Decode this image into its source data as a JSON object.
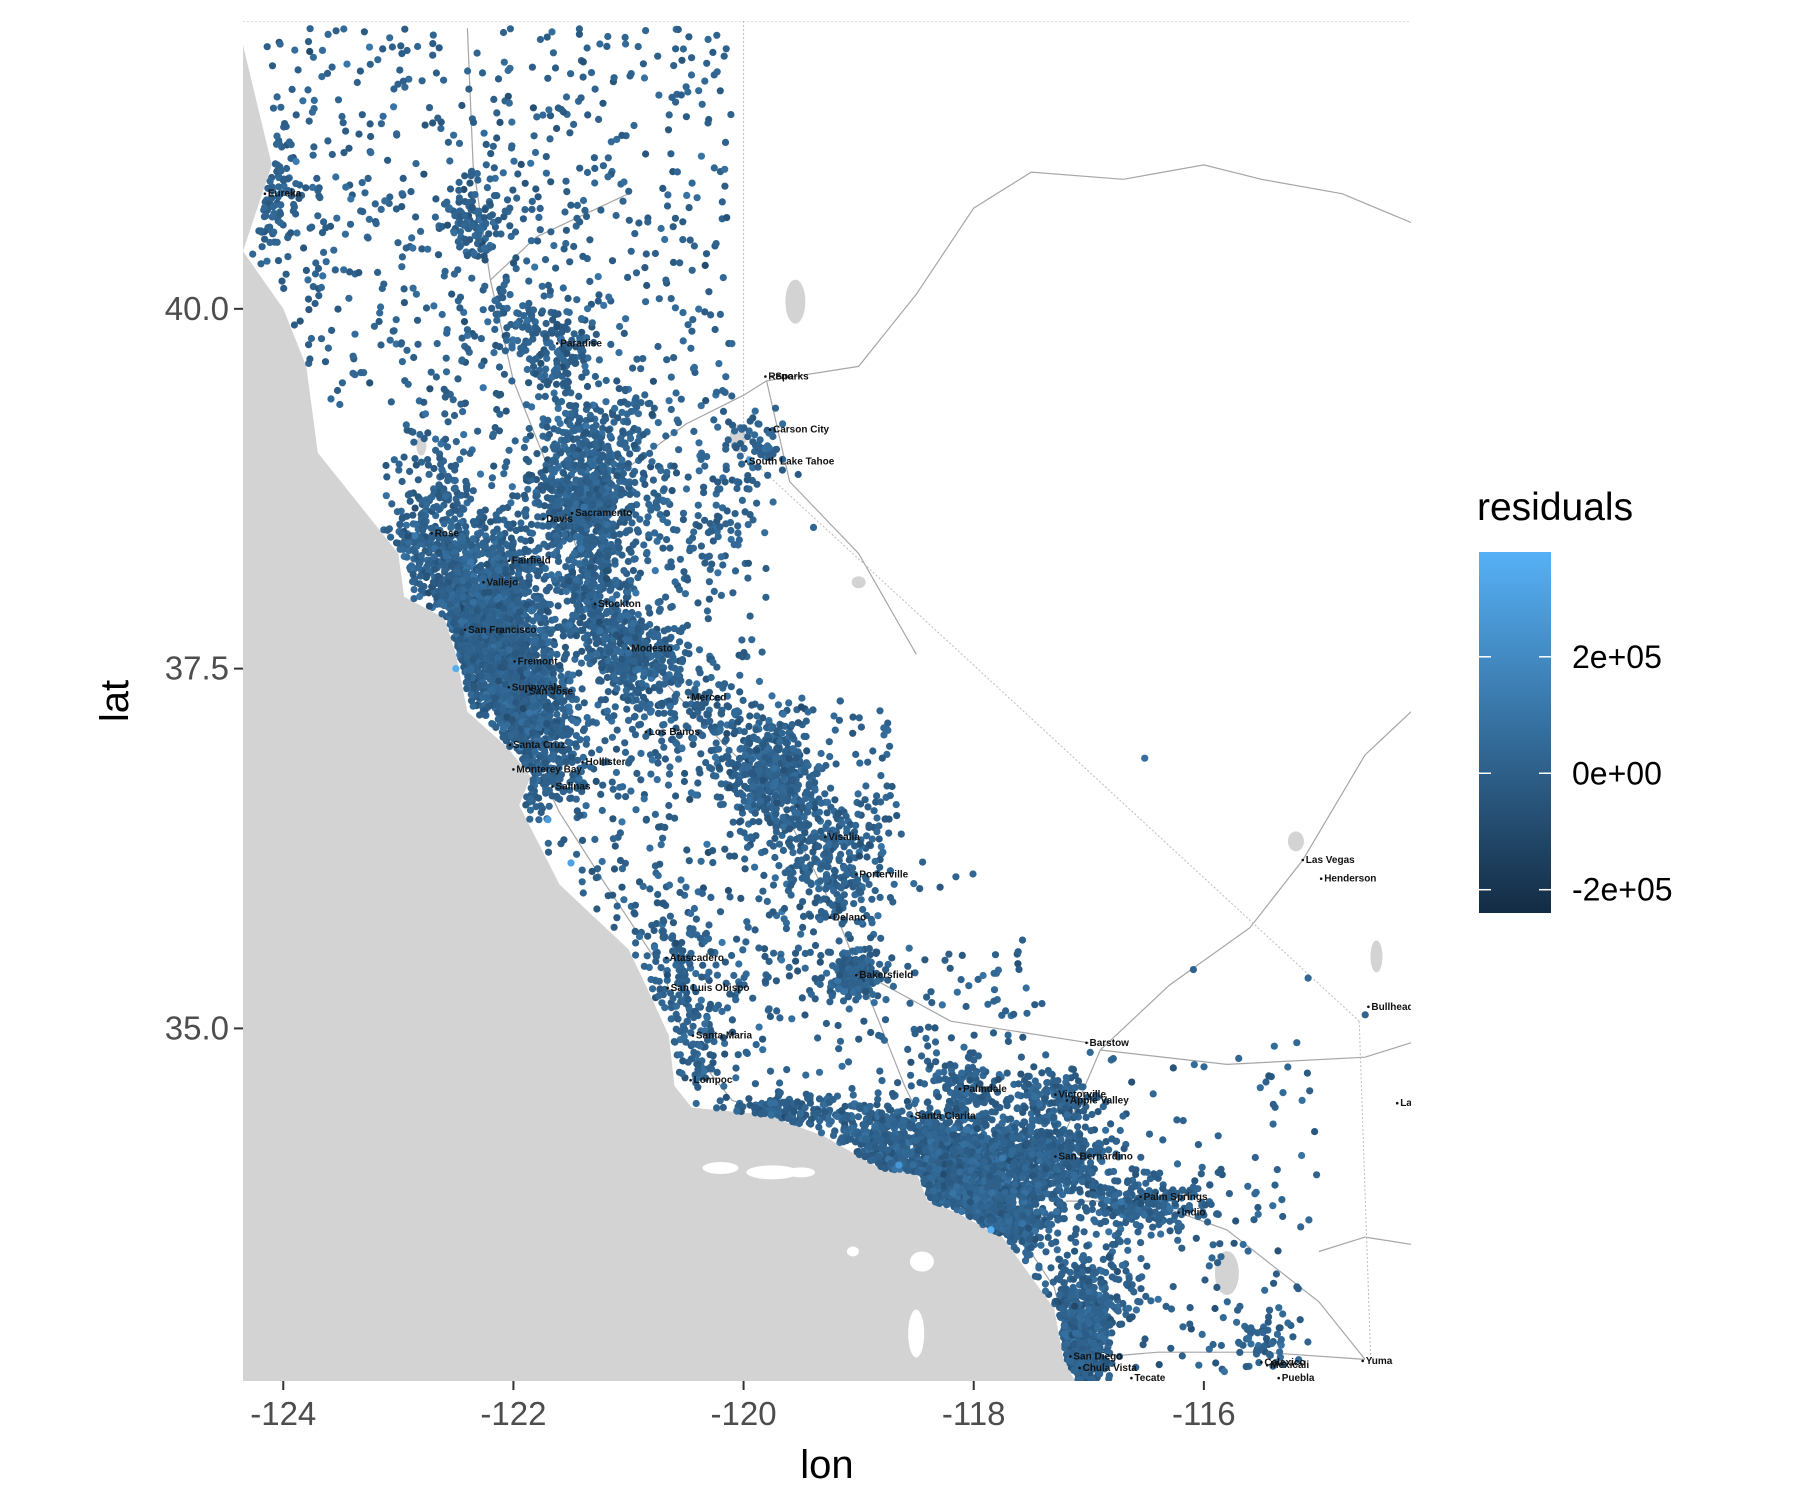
{
  "chart_data": {
    "type": "scatter",
    "title": "",
    "xlabel": "lon",
    "ylabel": "lat",
    "xlim": [
      -124.35,
      -114.2
    ],
    "ylim": [
      32.55,
      42.0
    ],
    "x_ticks": [
      -124,
      -122,
      -120,
      -118,
      -116
    ],
    "x_tick_labels": [
      "-124",
      "-122",
      "-120",
      "-118",
      "-116"
    ],
    "y_ticks": [
      35.0,
      37.5,
      40.0
    ],
    "y_tick_labels": [
      "35.0",
      "37.5",
      "40.0"
    ],
    "color_variable": "residuals",
    "legend": {
      "title": "residuals",
      "position": "right",
      "range": [
        -240000.0,
        380000.0
      ],
      "breaks": [
        -200000.0,
        0,
        200000.0
      ],
      "break_labels": [
        "-2e+05",
        "0e+00",
        "2e+05"
      ],
      "low_color": "#132B43",
      "high_color": "#56B1F7"
    },
    "basemap": {
      "ocean_color": "#d3d3d3",
      "land_color": "#ffffff",
      "cities": [
        {
          "name": "Reno",
          "lon": -119.81,
          "lat": 39.53
        },
        {
          "name": "Sparks",
          "lon": -119.75,
          "lat": 39.53
        },
        {
          "name": "Carson City",
          "lon": -119.77,
          "lat": 39.16
        },
        {
          "name": "South Lake Tahoe",
          "lon": -119.98,
          "lat": 38.94
        },
        {
          "name": "Paradise",
          "lon": -121.62,
          "lat": 39.76
        },
        {
          "name": "Rose",
          "lon": -122.71,
          "lat": 38.44
        },
        {
          "name": "Fairfield",
          "lon": -122.04,
          "lat": 38.25
        },
        {
          "name": "Vallejo",
          "lon": -122.26,
          "lat": 38.1
        },
        {
          "name": "Davis",
          "lon": -121.74,
          "lat": 38.54
        },
        {
          "name": "Sacramento",
          "lon": -121.49,
          "lat": 38.58
        },
        {
          "name": "Stockton",
          "lon": -121.29,
          "lat": 37.95
        },
        {
          "name": "Modesto",
          "lon": -121.0,
          "lat": 37.64
        },
        {
          "name": "San Francisco",
          "lon": -122.42,
          "lat": 37.77
        },
        {
          "name": "Fremont",
          "lon": -121.99,
          "lat": 37.55
        },
        {
          "name": "San Jose",
          "lon": -121.89,
          "lat": 37.34
        },
        {
          "name": "Sunnyvale",
          "lon": -122.04,
          "lat": 37.37
        },
        {
          "name": "Santa Cruz",
          "lon": -122.03,
          "lat": 36.97
        },
        {
          "name": "Hollister",
          "lon": -121.4,
          "lat": 36.85
        },
        {
          "name": "Salinas",
          "lon": -121.66,
          "lat": 36.68
        },
        {
          "name": "Monterey Bay",
          "lon": -122.0,
          "lat": 36.8
        },
        {
          "name": "Los Banos",
          "lon": -120.85,
          "lat": 37.06
        },
        {
          "name": "Merced",
          "lon": -120.48,
          "lat": 37.3
        },
        {
          "name": "Visalia",
          "lon": -119.29,
          "lat": 36.33
        },
        {
          "name": "Porterville",
          "lon": -119.02,
          "lat": 36.07
        },
        {
          "name": "Delano",
          "lon": -119.25,
          "lat": 35.77
        },
        {
          "name": "Bakersfield",
          "lon": -119.02,
          "lat": 35.37
        },
        {
          "name": "Atascadero",
          "lon": -120.67,
          "lat": 35.49
        },
        {
          "name": "San Luis Obispo",
          "lon": -120.66,
          "lat": 35.28
        },
        {
          "name": "Santa Maria",
          "lon": -120.44,
          "lat": 34.95
        },
        {
          "name": "Lompoc",
          "lon": -120.46,
          "lat": 34.64
        },
        {
          "name": "Barstow",
          "lon": -117.02,
          "lat": 34.9
        },
        {
          "name": "Palmdale",
          "lon": -118.12,
          "lat": 34.58
        },
        {
          "name": "Victorville",
          "lon": -117.29,
          "lat": 34.54
        },
        {
          "name": "Apple Valley",
          "lon": -117.19,
          "lat": 34.5
        },
        {
          "name": "Santa Clarita",
          "lon": -118.54,
          "lat": 34.39
        },
        {
          "name": "San Bernardino",
          "lon": -117.29,
          "lat": 34.11
        },
        {
          "name": "Palm Springs",
          "lon": -116.55,
          "lat": 33.83
        },
        {
          "name": "Indio",
          "lon": -116.22,
          "lat": 33.72
        },
        {
          "name": "San Diego",
          "lon": -117.16,
          "lat": 32.72
        },
        {
          "name": "Chula Vista",
          "lon": -117.08,
          "lat": 32.64
        },
        {
          "name": "Tecate",
          "lon": -116.63,
          "lat": 32.57
        },
        {
          "name": "Calexico",
          "lon": -115.5,
          "lat": 32.68
        },
        {
          "name": "Mexicali",
          "lon": -115.45,
          "lat": 32.66
        },
        {
          "name": "Yuma",
          "lon": -114.62,
          "lat": 32.69
        },
        {
          "name": "Las Vegas",
          "lon": -115.14,
          "lat": 36.17
        },
        {
          "name": "Henderson",
          "lon": -114.98,
          "lat": 36.04
        },
        {
          "name": "Bullhead City",
          "lon": -114.57,
          "lat": 35.15
        },
        {
          "name": "Lake Havasu",
          "lon": -114.32,
          "lat": 34.48
        },
        {
          "name": "Puebla",
          "lon": -115.35,
          "lat": 32.57
        },
        {
          "name": "Eureka",
          "lon": -124.16,
          "lat": 40.8
        }
      ]
    },
    "clusters": [
      {
        "lon": -124.1,
        "lat": 40.8,
        "sx": 0.12,
        "sy": 0.2,
        "n": 90
      },
      {
        "lon": -122.35,
        "lat": 40.6,
        "sx": 0.12,
        "sy": 0.12,
        "n": 110
      },
      {
        "lon": -122.0,
        "lat": 39.95,
        "sx": 0.2,
        "sy": 0.2,
        "n": 60
      },
      {
        "lon": -121.6,
        "lat": 39.73,
        "sx": 0.2,
        "sy": 0.15,
        "n": 110
      },
      {
        "lon": -121.4,
        "lat": 39.1,
        "sx": 0.3,
        "sy": 0.2,
        "n": 180
      },
      {
        "lon": -121.2,
        "lat": 38.75,
        "sx": 0.25,
        "sy": 0.25,
        "n": 200
      },
      {
        "lon": -121.4,
        "lat": 38.55,
        "sx": 0.2,
        "sy": 0.2,
        "n": 400
      },
      {
        "lon": -122.7,
        "lat": 38.7,
        "sx": 0.2,
        "sy": 0.25,
        "n": 110
      },
      {
        "lon": -122.8,
        "lat": 38.35,
        "sx": 0.25,
        "sy": 0.18,
        "n": 200
      },
      {
        "lon": -122.25,
        "lat": 37.95,
        "sx": 0.25,
        "sy": 0.25,
        "n": 900
      },
      {
        "lon": -122.4,
        "lat": 37.7,
        "sx": 0.1,
        "sy": 0.12,
        "n": 200
      },
      {
        "lon": -122.1,
        "lat": 37.55,
        "sx": 0.2,
        "sy": 0.18,
        "n": 600
      },
      {
        "lon": -121.9,
        "lat": 37.3,
        "sx": 0.18,
        "sy": 0.18,
        "n": 400
      },
      {
        "lon": -121.8,
        "lat": 36.9,
        "sx": 0.2,
        "sy": 0.22,
        "n": 250
      },
      {
        "lon": -121.3,
        "lat": 37.95,
        "sx": 0.15,
        "sy": 0.2,
        "n": 250
      },
      {
        "lon": -120.95,
        "lat": 37.6,
        "sx": 0.2,
        "sy": 0.15,
        "n": 300
      },
      {
        "lon": -120.5,
        "lat": 37.3,
        "sx": 0.3,
        "sy": 0.2,
        "n": 100
      },
      {
        "lon": -119.8,
        "lat": 36.8,
        "sx": 0.2,
        "sy": 0.18,
        "n": 400
      },
      {
        "lon": -119.35,
        "lat": 36.35,
        "sx": 0.25,
        "sy": 0.2,
        "n": 200
      },
      {
        "lon": -119.1,
        "lat": 36.0,
        "sx": 0.15,
        "sy": 0.15,
        "n": 70
      },
      {
        "lon": -119.05,
        "lat": 35.37,
        "sx": 0.12,
        "sy": 0.08,
        "n": 170
      },
      {
        "lon": -120.6,
        "lat": 35.4,
        "sx": 0.2,
        "sy": 0.3,
        "n": 110
      },
      {
        "lon": -120.4,
        "lat": 34.9,
        "sx": 0.12,
        "sy": 0.15,
        "n": 70
      },
      {
        "lon": -119.7,
        "lat": 34.42,
        "sx": 0.3,
        "sy": 0.05,
        "n": 140
      },
      {
        "lon": -118.95,
        "lat": 34.25,
        "sx": 0.25,
        "sy": 0.1,
        "n": 180
      },
      {
        "lon": -118.25,
        "lat": 34.0,
        "sx": 0.35,
        "sy": 0.2,
        "n": 1600
      },
      {
        "lon": -117.7,
        "lat": 33.7,
        "sx": 0.18,
        "sy": 0.15,
        "n": 400
      },
      {
        "lon": -117.4,
        "lat": 34.1,
        "sx": 0.3,
        "sy": 0.12,
        "n": 500
      },
      {
        "lon": -117.3,
        "lat": 34.5,
        "sx": 0.18,
        "sy": 0.12,
        "n": 150
      },
      {
        "lon": -118.1,
        "lat": 34.6,
        "sx": 0.15,
        "sy": 0.1,
        "n": 100
      },
      {
        "lon": -116.5,
        "lat": 33.78,
        "sx": 0.3,
        "sy": 0.1,
        "n": 250
      },
      {
        "lon": -117.1,
        "lat": 32.8,
        "sx": 0.12,
        "sy": 0.2,
        "n": 700
      },
      {
        "lon": -116.95,
        "lat": 33.2,
        "sx": 0.2,
        "sy": 0.2,
        "n": 150
      },
      {
        "lon": -115.5,
        "lat": 32.8,
        "sx": 0.12,
        "sy": 0.12,
        "n": 50
      },
      {
        "lon": -120.3,
        "lat": 38.5,
        "sx": 0.3,
        "sy": 0.3,
        "n": 80
      },
      {
        "lon": -119.9,
        "lat": 39.1,
        "sx": 0.1,
        "sy": 0.12,
        "n": 45
      }
    ],
    "uniform_regions": [
      {
        "lon": [
          -124.2,
          -120.1
        ],
        "lat": [
          39.3,
          41.95
        ],
        "n": 650
      },
      {
        "lon": [
          -122.8,
          -119.8
        ],
        "lat": [
          36.6,
          39.3
        ],
        "n": 500
      },
      {
        "lon": [
          -121.6,
          -118.7
        ],
        "lat": [
          35.3,
          37.3
        ],
        "n": 450
      },
      {
        "lon": [
          -120.4,
          -117.4
        ],
        "lat": [
          34.3,
          35.6
        ],
        "n": 180
      },
      {
        "lon": [
          -117.6,
          -115.0
        ],
        "lat": [
          32.6,
          34.8
        ],
        "n": 170
      },
      {
        "lon": [
          -119.5,
          -114.5
        ],
        "lat": [
          34.7,
          37.2
        ],
        "n": 25
      }
    ],
    "highlight_points": [
      {
        "lon": -122.5,
        "lat": 37.5,
        "residual": 360000
      },
      {
        "lon": -121.5,
        "lat": 36.15,
        "residual": 310000
      },
      {
        "lon": -117.85,
        "lat": 33.6,
        "residual": 370000
      },
      {
        "lon": -118.65,
        "lat": 34.05,
        "residual": 250000
      },
      {
        "lon": -119.95,
        "lat": 38.95,
        "residual": 250000
      },
      {
        "lon": -121.7,
        "lat": 36.45,
        "residual": 280000
      }
    ]
  }
}
